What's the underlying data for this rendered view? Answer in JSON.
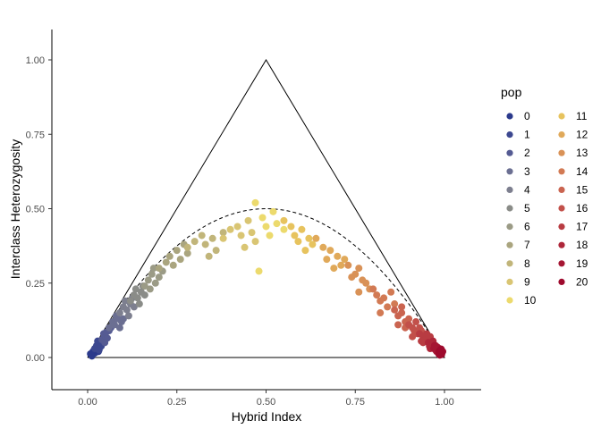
{
  "chart_data": {
    "type": "scatter",
    "xlabel": "Hybrid Index",
    "ylabel": "Interclass Heterozygosity",
    "xlim": [
      -0.1,
      1.1
    ],
    "ylim": [
      -0.1,
      1.1
    ],
    "x_ticks": [
      "0.00",
      "0.25",
      "0.50",
      "0.75",
      "1.00"
    ],
    "y_ticks": [
      "0.00",
      "0.25",
      "0.50",
      "0.75",
      "1.00"
    ],
    "grid": false,
    "legend": {
      "title": "pop",
      "position": "right",
      "entries": [
        {
          "label": "0",
          "color": "#2b3a8c"
        },
        {
          "label": "1",
          "color": "#3c4890"
        },
        {
          "label": "2",
          "color": "#555b93"
        },
        {
          "label": "3",
          "color": "#6b6f92"
        },
        {
          "label": "4",
          "color": "#7d7f8f"
        },
        {
          "label": "5",
          "color": "#8a8c88"
        },
        {
          "label": "6",
          "color": "#9b9b86"
        },
        {
          "label": "7",
          "color": "#aaa57f"
        },
        {
          "label": "8",
          "color": "#c1b57a"
        },
        {
          "label": "9",
          "color": "#d9c573"
        },
        {
          "label": "10",
          "color": "#ecda6d"
        },
        {
          "label": "11",
          "color": "#e7c35e"
        },
        {
          "label": "12",
          "color": "#e0a95a"
        },
        {
          "label": "13",
          "color": "#d99257"
        },
        {
          "label": "14",
          "color": "#d27a54"
        },
        {
          "label": "15",
          "color": "#ca6450"
        },
        {
          "label": "16",
          "color": "#c2504a"
        },
        {
          "label": "17",
          "color": "#b83c42"
        },
        {
          "label": "18",
          "color": "#ae273a"
        },
        {
          "label": "19",
          "color": "#a51633"
        },
        {
          "label": "20",
          "color": "#9e0a2d"
        }
      ]
    },
    "reference_lines": {
      "triangle": [
        [
          0,
          0
        ],
        [
          0.5,
          1
        ],
        [
          1,
          0
        ],
        [
          0,
          0
        ]
      ],
      "expected_curve": {
        "formula": "2*h*(1-h)",
        "style": "dashed"
      }
    },
    "series": [
      {
        "pop": "0",
        "points": [
          [
            0.01,
            0.01
          ],
          [
            0.015,
            0.02
          ],
          [
            0.02,
            0.015
          ],
          [
            0.012,
            0.005
          ],
          [
            0.025,
            0.03
          ],
          [
            0.018,
            0.025
          ],
          [
            0.008,
            0.012
          ],
          [
            0.03,
            0.02
          ]
        ]
      },
      {
        "pop": "1",
        "points": [
          [
            0.025,
            0.04
          ],
          [
            0.03,
            0.035
          ],
          [
            0.035,
            0.05
          ],
          [
            0.02,
            0.03
          ],
          [
            0.04,
            0.045
          ],
          [
            0.032,
            0.025
          ],
          [
            0.028,
            0.055
          ],
          [
            0.038,
            0.038
          ]
        ]
      },
      {
        "pop": "2",
        "points": [
          [
            0.04,
            0.06
          ],
          [
            0.05,
            0.07
          ],
          [
            0.045,
            0.08
          ],
          [
            0.055,
            0.065
          ],
          [
            0.06,
            0.09
          ],
          [
            0.048,
            0.05
          ],
          [
            0.065,
            0.1
          ],
          [
            0.052,
            0.085
          ]
        ]
      },
      {
        "pop": "3",
        "points": [
          [
            0.06,
            0.1
          ],
          [
            0.07,
            0.12
          ],
          [
            0.075,
            0.11
          ],
          [
            0.085,
            0.13
          ],
          [
            0.09,
            0.1
          ],
          [
            0.08,
            0.14
          ],
          [
            0.095,
            0.12
          ],
          [
            0.1,
            0.13
          ]
        ]
      },
      {
        "pop": "4",
        "points": [
          [
            0.09,
            0.15
          ],
          [
            0.1,
            0.17
          ],
          [
            0.11,
            0.16
          ],
          [
            0.12,
            0.18
          ],
          [
            0.105,
            0.19
          ],
          [
            0.115,
            0.14
          ],
          [
            0.125,
            0.2
          ],
          [
            0.13,
            0.17
          ]
        ]
      },
      {
        "pop": "5",
        "points": [
          [
            0.12,
            0.19
          ],
          [
            0.13,
            0.21
          ],
          [
            0.14,
            0.2
          ],
          [
            0.135,
            0.23
          ],
          [
            0.15,
            0.22
          ],
          [
            0.145,
            0.18
          ],
          [
            0.155,
            0.24
          ],
          [
            0.16,
            0.21
          ]
        ]
      },
      {
        "pop": "6",
        "points": [
          [
            0.16,
            0.24
          ],
          [
            0.17,
            0.26
          ],
          [
            0.175,
            0.23
          ],
          [
            0.18,
            0.28
          ],
          [
            0.19,
            0.25
          ],
          [
            0.185,
            0.3
          ],
          [
            0.2,
            0.27
          ],
          [
            0.21,
            0.29
          ]
        ]
      },
      {
        "pop": "7",
        "points": [
          [
            0.2,
            0.3
          ],
          [
            0.22,
            0.32
          ],
          [
            0.23,
            0.34
          ],
          [
            0.24,
            0.31
          ],
          [
            0.25,
            0.36
          ],
          [
            0.26,
            0.33
          ],
          [
            0.27,
            0.38
          ],
          [
            0.28,
            0.35
          ]
        ]
      },
      {
        "pop": "8",
        "points": [
          [
            0.28,
            0.37
          ],
          [
            0.3,
            0.39
          ],
          [
            0.32,
            0.41
          ],
          [
            0.33,
            0.38
          ],
          [
            0.35,
            0.4
          ],
          [
            0.36,
            0.36
          ],
          [
            0.38,
            0.42
          ],
          [
            0.34,
            0.34
          ]
        ]
      },
      {
        "pop": "9",
        "points": [
          [
            0.38,
            0.4
          ],
          [
            0.4,
            0.43
          ],
          [
            0.42,
            0.44
          ],
          [
            0.43,
            0.41
          ],
          [
            0.45,
            0.46
          ],
          [
            0.46,
            0.42
          ],
          [
            0.47,
            0.39
          ],
          [
            0.44,
            0.37
          ]
        ]
      },
      {
        "pop": "10",
        "points": [
          [
            0.47,
            0.52
          ],
          [
            0.49,
            0.47
          ],
          [
            0.5,
            0.44
          ],
          [
            0.52,
            0.49
          ],
          [
            0.53,
            0.45
          ],
          [
            0.48,
            0.29
          ],
          [
            0.51,
            0.41
          ],
          [
            0.55,
            0.43
          ]
        ]
      },
      {
        "pop": "11",
        "points": [
          [
            0.55,
            0.46
          ],
          [
            0.57,
            0.44
          ],
          [
            0.58,
            0.41
          ],
          [
            0.6,
            0.43
          ],
          [
            0.62,
            0.4
          ],
          [
            0.63,
            0.38
          ],
          [
            0.61,
            0.36
          ],
          [
            0.59,
            0.39
          ]
        ]
      },
      {
        "pop": "12",
        "points": [
          [
            0.64,
            0.4
          ],
          [
            0.66,
            0.37
          ],
          [
            0.68,
            0.36
          ],
          [
            0.7,
            0.34
          ],
          [
            0.71,
            0.31
          ],
          [
            0.72,
            0.33
          ],
          [
            0.69,
            0.3
          ],
          [
            0.67,
            0.33
          ]
        ]
      },
      {
        "pop": "13",
        "points": [
          [
            0.73,
            0.31
          ],
          [
            0.75,
            0.28
          ],
          [
            0.76,
            0.3
          ],
          [
            0.77,
            0.26
          ],
          [
            0.78,
            0.25
          ],
          [
            0.79,
            0.23
          ],
          [
            0.76,
            0.22
          ],
          [
            0.74,
            0.27
          ]
        ]
      },
      {
        "pop": "14",
        "points": [
          [
            0.8,
            0.23
          ],
          [
            0.81,
            0.21
          ],
          [
            0.82,
            0.19
          ],
          [
            0.83,
            0.2
          ],
          [
            0.84,
            0.17
          ],
          [
            0.82,
            0.15
          ],
          [
            0.85,
            0.22
          ],
          [
            0.86,
            0.18
          ]
        ]
      },
      {
        "pop": "15",
        "points": [
          [
            0.86,
            0.16
          ],
          [
            0.87,
            0.14
          ],
          [
            0.88,
            0.15
          ],
          [
            0.89,
            0.12
          ],
          [
            0.87,
            0.11
          ],
          [
            0.9,
            0.13
          ],
          [
            0.88,
            0.17
          ],
          [
            0.89,
            0.1
          ]
        ]
      },
      {
        "pop": "16",
        "points": [
          [
            0.9,
            0.11
          ],
          [
            0.91,
            0.1
          ],
          [
            0.915,
            0.09
          ],
          [
            0.92,
            0.12
          ],
          [
            0.925,
            0.08
          ],
          [
            0.93,
            0.1
          ],
          [
            0.91,
            0.07
          ],
          [
            0.935,
            0.09
          ]
        ]
      },
      {
        "pop": "17",
        "points": [
          [
            0.93,
            0.08
          ],
          [
            0.94,
            0.07
          ],
          [
            0.945,
            0.06
          ],
          [
            0.95,
            0.08
          ],
          [
            0.94,
            0.05
          ],
          [
            0.955,
            0.065
          ],
          [
            0.935,
            0.055
          ],
          [
            0.96,
            0.07
          ]
        ]
      },
      {
        "pop": "18",
        "points": [
          [
            0.955,
            0.05
          ],
          [
            0.96,
            0.04
          ],
          [
            0.965,
            0.045
          ],
          [
            0.97,
            0.035
          ],
          [
            0.96,
            0.03
          ],
          [
            0.968,
            0.055
          ],
          [
            0.975,
            0.04
          ],
          [
            0.958,
            0.038
          ]
        ]
      },
      {
        "pop": "19",
        "points": [
          [
            0.97,
            0.03
          ],
          [
            0.975,
            0.025
          ],
          [
            0.98,
            0.035
          ],
          [
            0.978,
            0.02
          ],
          [
            0.972,
            0.04
          ],
          [
            0.985,
            0.03
          ],
          [
            0.982,
            0.018
          ],
          [
            0.976,
            0.028
          ]
        ]
      },
      {
        "pop": "20",
        "points": [
          [
            0.985,
            0.02
          ],
          [
            0.99,
            0.015
          ],
          [
            0.988,
            0.025
          ],
          [
            0.992,
            0.01
          ],
          [
            0.995,
            0.02
          ],
          [
            0.984,
            0.012
          ],
          [
            0.991,
            0.028
          ],
          [
            0.987,
            0.008
          ]
        ]
      }
    ]
  }
}
